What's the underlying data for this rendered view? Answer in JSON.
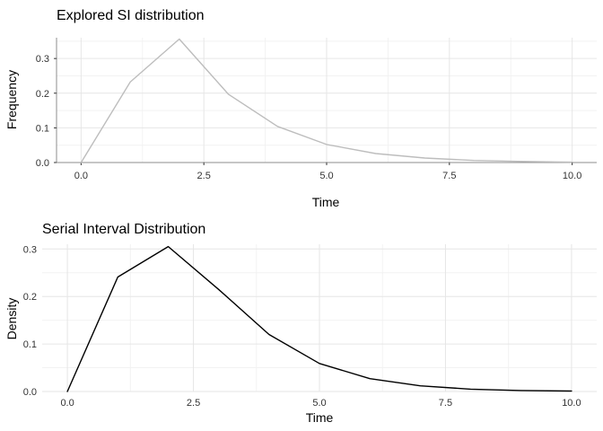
{
  "chart_data": [
    {
      "type": "line",
      "title": "Explored SI distribution",
      "xlabel": "Time",
      "ylabel": "Frequency",
      "xlim": [
        0,
        10
      ],
      "ylim": [
        0,
        0.36
      ],
      "x_ticks": [
        0,
        2.5,
        5,
        7.5,
        10
      ],
      "x_tick_labels": [
        "0.0",
        "2.5",
        "5.0",
        "7.5",
        "10.0"
      ],
      "y_ticks": [
        0,
        0.1,
        0.2,
        0.3
      ],
      "y_tick_labels": [
        "0.0",
        "0.1",
        "0.2",
        "0.3"
      ],
      "grid": true,
      "axis_lines": true,
      "line_color": "#bdbdbd",
      "series": [
        {
          "x": [
            0,
            1,
            2,
            3,
            4,
            5,
            6,
            7,
            8,
            9,
            10
          ],
          "values": [
            0.0,
            0.232,
            0.356,
            0.197,
            0.104,
            0.052,
            0.026,
            0.013,
            0.006,
            0.003,
            0.001
          ]
        }
      ]
    },
    {
      "type": "line",
      "title": "Serial Interval Distribution",
      "xlabel": "Time",
      "ylabel": "Density",
      "xlim": [
        0,
        10
      ],
      "ylim": [
        0,
        0.31
      ],
      "x_ticks": [
        0,
        2.5,
        5,
        7.5,
        10
      ],
      "x_tick_labels": [
        "0.0",
        "2.5",
        "5.0",
        "7.5",
        "10.0"
      ],
      "y_ticks": [
        0,
        0.1,
        0.2,
        0.3
      ],
      "y_tick_labels": [
        "0.0",
        "0.1",
        "0.2",
        "0.3"
      ],
      "grid": true,
      "axis_lines": false,
      "line_color": "#000000",
      "series": [
        {
          "x": [
            0,
            1,
            2,
            3,
            4,
            5,
            6,
            7,
            8,
            9,
            10
          ],
          "values": [
            0.0,
            0.241,
            0.305,
            0.215,
            0.12,
            0.059,
            0.027,
            0.012,
            0.005,
            0.002,
            0.001
          ]
        }
      ]
    }
  ]
}
